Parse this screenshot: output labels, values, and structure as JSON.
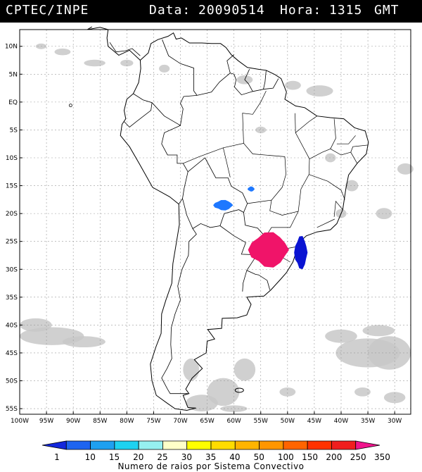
{
  "header": {
    "source": "CPTEC/INPE",
    "date_label": "Data:",
    "date_value": "20090514",
    "time_label": "Hora:",
    "time_value": "1315",
    "tz": "GMT"
  },
  "map": {
    "lat_labels": [
      "10N",
      "5N",
      "EQ",
      "5S",
      "10S",
      "15S",
      "20S",
      "25S",
      "30S",
      "35S",
      "40S",
      "45S",
      "50S",
      "55S"
    ],
    "lat_values": [
      10,
      5,
      0,
      -5,
      -10,
      -15,
      -20,
      -25,
      -30,
      -35,
      -40,
      -45,
      -50,
      -55
    ],
    "lon_labels": [
      "100W",
      "95W",
      "90W",
      "85W",
      "80W",
      "75W",
      "70W",
      "65W",
      "60W",
      "55W",
      "50W",
      "45W",
      "40W",
      "35W",
      "30W"
    ],
    "lon_values": [
      -100,
      -95,
      -90,
      -85,
      -80,
      -75,
      -70,
      -65,
      -60,
      -55,
      -50,
      -45,
      -40,
      -35,
      -30
    ],
    "extent": {
      "lon_min": -100,
      "lon_max": -27,
      "lat_min": -56,
      "lat_max": 13
    },
    "colors": {
      "cloud": "#c8c8c8",
      "coast": "#000000",
      "grid": "#9a9a9a"
    }
  },
  "systems": [
    {
      "name": "convective-system-bolivia",
      "lon": -62.0,
      "lat": -18.5,
      "rx_deg": 1.8,
      "ry_deg": 0.9,
      "color": "#1e78ff"
    },
    {
      "name": "convective-system-mato-grosso",
      "lon": -56.8,
      "lat": -15.6,
      "rx_deg": 0.6,
      "ry_deg": 0.4,
      "color": "#1e78ff"
    },
    {
      "name": "convective-system-south-main",
      "lon": -53.5,
      "lat": -26.5,
      "rx_deg": 3.8,
      "ry_deg": 3.2,
      "color": "#f01469"
    },
    {
      "name": "convective-system-south-coast",
      "lon": -47.5,
      "lat": -27.0,
      "rx_deg": 1.2,
      "ry_deg": 3.0,
      "color": "#0a14d2"
    }
  ],
  "legend": {
    "ticks": [
      "1",
      "10",
      "15",
      "20",
      "25",
      "30",
      "35",
      "40",
      "50",
      "100",
      "150",
      "200",
      "250",
      "350"
    ],
    "colors": [
      "#1428dc",
      "#1e64f0",
      "#1ea0f0",
      "#1ed2f0",
      "#96f0f0",
      "#ffffc8",
      "#ffff00",
      "#ffdc00",
      "#ffb400",
      "#ff9600",
      "#ff6400",
      "#ff3200",
      "#f01e1e",
      "#f0148c"
    ],
    "title": "Numero de raios por Sistema Convectivo"
  }
}
